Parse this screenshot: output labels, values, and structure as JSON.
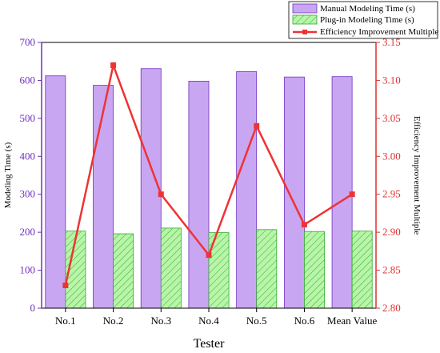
{
  "chart_data": {
    "type": "bar",
    "categories": [
      "No.1",
      "No.2",
      "No.3",
      "No.4",
      "No.5",
      "No.6",
      "Mean Value"
    ],
    "xlabel": "Tester",
    "ylabel": "Modeling Time (s)",
    "y2label": "Efficiency Improvement Multiple",
    "ylim": [
      0,
      700
    ],
    "y2lim": [
      2.8,
      3.15
    ],
    "yticks": [
      0,
      100,
      200,
      300,
      400,
      500,
      600,
      700
    ],
    "y2ticks": [
      "2.80",
      "2.85",
      "2.90",
      "2.95",
      "3.00",
      "3.05",
      "3.10",
      "3.15"
    ],
    "series": [
      {
        "name": "Manual Modeling Time (s)",
        "type": "bar",
        "axis": "left",
        "color": "#c9a6f2",
        "edge": "#7030c0",
        "values": [
          612,
          587,
          631,
          598,
          623,
          609,
          610
        ]
      },
      {
        "name": "Plug-in Modeling Time (s)",
        "type": "bar",
        "axis": "left",
        "color": "#b8f5a8",
        "edge": "#33aa33",
        "hatch": true,
        "values": [
          203,
          196,
          211,
          199,
          207,
          202,
          203
        ]
      },
      {
        "name": "Efficiency Improvement Multiple",
        "type": "line",
        "axis": "right",
        "color": "#ee3333",
        "marker": "square",
        "values": [
          2.83,
          3.12,
          2.95,
          2.87,
          3.04,
          2.91,
          2.95
        ]
      }
    ],
    "legend_position": "top-right",
    "grid": false
  }
}
